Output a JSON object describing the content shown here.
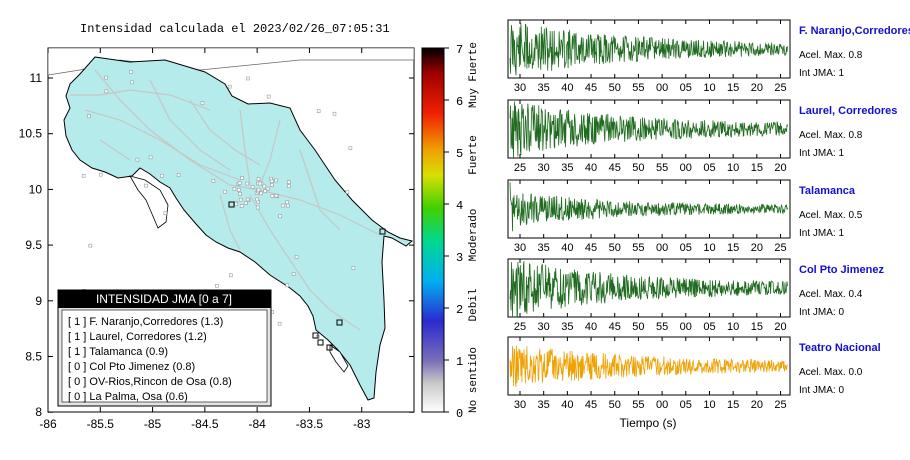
{
  "map": {
    "title": "Intensidad calculada el 2023/02/26_07:05:31",
    "x_ticks": [
      "-86",
      "-85.5",
      "-85",
      "-84.5",
      "-84",
      "-83.5",
      "-83"
    ],
    "y_ticks": [
      "11",
      "10.5",
      "10",
      "9.5",
      "9",
      "8.5",
      "8"
    ],
    "legend": {
      "title": "INTENSIDAD JMA [0 a 7]",
      "items": [
        "[ 1 ]  F. Naranjo,Corredores (1.3)",
        "[ 1 ]  Laurel, Corredores (1.2)",
        "[ 1 ]  Talamanca (0.9)",
        "[ 0 ]  Col Pto Jimenez (0.8)",
        "[ 0 ]  OV-Rios,Rincon de Osa (0.8)",
        "[ 0 ]  La Palma, Osa (0.6)"
      ]
    }
  },
  "colorbar": {
    "ticks": [
      "7",
      "6",
      "5",
      "4",
      "3",
      "2",
      "1",
      "0"
    ],
    "labels": [
      "Muy Fuerte",
      "Fuerte",
      "Moderado",
      "Debil",
      "No sentido"
    ]
  },
  "chart_data": {
    "type": "line",
    "xlabel": "Tiempo (s)",
    "panels": [
      {
        "station": "F. Naranjo,Corredores",
        "accel": "Acel. Max. 0.8",
        "jma": "Int JMA: 1",
        "color": "#1f6b1f",
        "x_ticks": [
          "30",
          "35",
          "40",
          "45",
          "50",
          "55",
          "00",
          "05",
          "10",
          "15",
          "20",
          "25"
        ],
        "peak": 0.8
      },
      {
        "station": "Laurel, Corredores",
        "accel": "Acel. Max. 0.8",
        "jma": "Int JMA: 1",
        "color": "#1f6b1f",
        "x_ticks": [
          "25",
          "30",
          "35",
          "40",
          "45",
          "50",
          "55",
          "00",
          "05",
          "10",
          "15",
          "20"
        ],
        "peak": 0.8
      },
      {
        "station": "Talamanca",
        "accel": "Acel. Max. 0.5",
        "jma": "Int JMA: 1",
        "color": "#1f6b1f",
        "x_ticks": [
          "30",
          "35",
          "40",
          "45",
          "50",
          "55",
          "00",
          "05",
          "10",
          "15",
          "20",
          "25"
        ],
        "peak": 0.5
      },
      {
        "station": "Col Pto Jimenez",
        "accel": "Acel. Max. 0.4",
        "jma": "Int JMA: 0",
        "color": "#1f6b1f",
        "x_ticks": [
          "25",
          "30",
          "35",
          "40",
          "45",
          "50",
          "55",
          "00",
          "05",
          "10",
          "15",
          "20"
        ],
        "peak": 0.4
      },
      {
        "station": "Teatro Nacional",
        "accel": "Acel. Max. 0.0",
        "jma": "Int JMA: 0",
        "color": "#f0a000",
        "x_ticks": [
          "30",
          "35",
          "40",
          "45",
          "50",
          "55",
          "00",
          "05",
          "10",
          "15",
          "20",
          "25"
        ],
        "peak": 0.0
      }
    ]
  }
}
